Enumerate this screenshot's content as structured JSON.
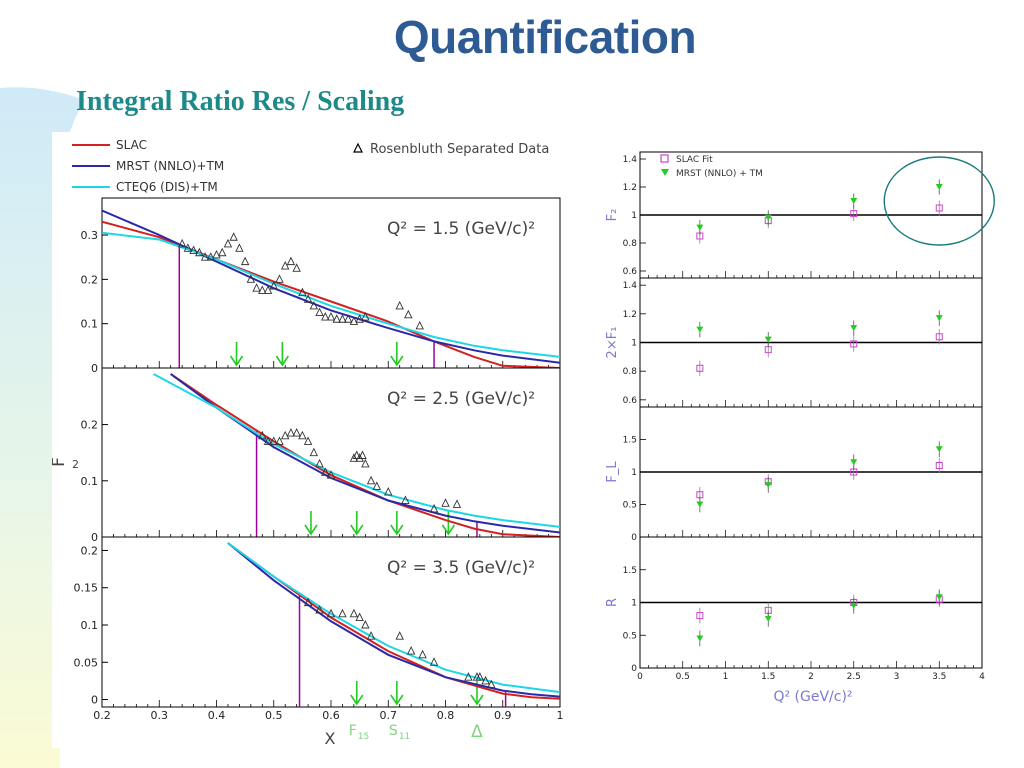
{
  "slide": {
    "title": "Quantification",
    "subtitle": "Integral Ratio Res / Scaling"
  },
  "colors": {
    "title": "#2f5b95",
    "subtitle": "#1d8a8a",
    "slac": "#d42020",
    "mrst": "#2a2aa8",
    "cteq": "#1ed6e6",
    "cut_line": "#a000a0",
    "arrow": "#22cc22",
    "fit_marker": "#cc44cc",
    "mrst_marker": "#22cc22",
    "ellipse": "#1a7a7a"
  },
  "chart_data": [
    {
      "type": "line",
      "ylabel": "F_2",
      "xlabel": "X",
      "xlim": [
        0.2,
        1.0
      ],
      "x_ticks": [
        "0.2",
        "0.3",
        "0.4",
        "0.5",
        "0.6",
        "0.7",
        "0.8",
        "0.9",
        "1"
      ],
      "legend": {
        "placement": "top",
        "entries": [
          "SLAC",
          "MRST (NNLO)+TM",
          "CTEQ6 (DIS)+TM"
        ],
        "marker_entry": "Rosenbluth Separated Data"
      },
      "resonance_markers": [
        {
          "label": "F15",
          "x": 0.645
        },
        {
          "label": "S11",
          "x": 0.715
        },
        {
          "label": "Δ",
          "x": 0.855
        }
      ],
      "panels": [
        {
          "label": "Q² = 1.5 (GeV/c)²",
          "ylim": [
            0,
            0.37
          ],
          "y_ticks": [
            "0",
            "0.1",
            "0.2",
            "0.3"
          ],
          "y_tick_values": [
            0,
            0.1,
            0.2,
            0.3
          ],
          "cut_x": [
            0.335,
            0.78
          ],
          "arrows_x": [
            0.435,
            0.515,
            0.715
          ],
          "series": [
            {
              "name": "SLAC",
              "x": [
                0.2,
                0.3,
                0.4,
                0.5,
                0.6,
                0.7,
                0.78,
                0.85,
                0.9,
                1.0
              ],
              "values": [
                0.33,
                0.295,
                0.245,
                0.195,
                0.15,
                0.105,
                0.06,
                0.025,
                0.005,
                0.0
              ]
            },
            {
              "name": "MRST (NNLO)+TM",
              "x": [
                0.2,
                0.3,
                0.4,
                0.5,
                0.6,
                0.7,
                0.78,
                0.85,
                0.9,
                1.0
              ],
              "values": [
                0.355,
                0.3,
                0.24,
                0.18,
                0.13,
                0.09,
                0.06,
                0.04,
                0.028,
                0.012
              ]
            },
            {
              "name": "CTEQ6 (DIS)+TM",
              "x": [
                0.2,
                0.3,
                0.4,
                0.5,
                0.6,
                0.7,
                0.78,
                0.85,
                0.9,
                1.0
              ],
              "values": [
                0.305,
                0.29,
                0.245,
                0.19,
                0.14,
                0.1,
                0.07,
                0.05,
                0.04,
                0.025
              ]
            }
          ],
          "data_points": {
            "x": [
              0.34,
              0.35,
              0.36,
              0.37,
              0.38,
              0.39,
              0.4,
              0.41,
              0.42,
              0.43,
              0.44,
              0.45,
              0.46,
              0.47,
              0.48,
              0.49,
              0.5,
              0.51,
              0.52,
              0.53,
              0.54,
              0.55,
              0.56,
              0.57,
              0.58,
              0.59,
              0.6,
              0.61,
              0.62,
              0.63,
              0.64,
              0.65,
              0.66,
              0.72,
              0.735,
              0.755
            ],
            "y": [
              0.28,
              0.27,
              0.265,
              0.26,
              0.25,
              0.25,
              0.255,
              0.26,
              0.28,
              0.295,
              0.27,
              0.24,
              0.2,
              0.18,
              0.175,
              0.175,
              0.185,
              0.2,
              0.23,
              0.24,
              0.225,
              0.17,
              0.155,
              0.14,
              0.125,
              0.115,
              0.115,
              0.11,
              0.11,
              0.11,
              0.105,
              0.11,
              0.115,
              0.14,
              0.12,
              0.095
            ]
          }
        },
        {
          "label": "Q² = 2.5 (GeV/c)²",
          "ylim": [
            0,
            0.29
          ],
          "y_ticks": [
            "0",
            "0.1",
            "0.2"
          ],
          "y_tick_values": [
            0,
            0.1,
            0.2
          ],
          "cut_x": [
            0.47,
            0.855
          ],
          "arrows_x": [
            0.565,
            0.645,
            0.715,
            0.805
          ],
          "series": [
            {
              "name": "SLAC",
              "x": [
                0.32,
                0.4,
                0.5,
                0.6,
                0.7,
                0.8,
                0.85,
                0.9,
                1.0
              ],
              "values": [
                0.29,
                0.235,
                0.17,
                0.11,
                0.065,
                0.03,
                0.015,
                0.005,
                0.0
              ]
            },
            {
              "name": "MRST (NNLO)+TM",
              "x": [
                0.32,
                0.4,
                0.5,
                0.6,
                0.7,
                0.8,
                0.85,
                0.9,
                1.0
              ],
              "values": [
                0.29,
                0.23,
                0.16,
                0.105,
                0.065,
                0.038,
                0.028,
                0.02,
                0.008
              ]
            },
            {
              "name": "CTEQ6 (DIS)+TM",
              "x": [
                0.29,
                0.4,
                0.5,
                0.6,
                0.7,
                0.8,
                0.85,
                0.9,
                1.0
              ],
              "values": [
                0.29,
                0.23,
                0.165,
                0.115,
                0.075,
                0.048,
                0.038,
                0.03,
                0.018
              ]
            }
          ],
          "data_points": {
            "x": [
              0.48,
              0.49,
              0.5,
              0.51,
              0.52,
              0.53,
              0.54,
              0.55,
              0.56,
              0.57,
              0.58,
              0.59,
              0.6,
              0.64,
              0.645,
              0.65,
              0.655,
              0.66,
              0.67,
              0.68,
              0.7,
              0.73,
              0.78,
              0.8,
              0.82
            ],
            "y": [
              0.18,
              0.17,
              0.17,
              0.17,
              0.18,
              0.185,
              0.185,
              0.18,
              0.17,
              0.15,
              0.13,
              0.115,
              0.11,
              0.14,
              0.145,
              0.14,
              0.145,
              0.13,
              0.1,
              0.09,
              0.08,
              0.065,
              0.05,
              0.06,
              0.058
            ]
          }
        },
        {
          "label": "Q² = 3.5 (GeV/c)²",
          "ylim": [
            -0.01,
            0.21
          ],
          "y_ticks": [
            "0",
            "0.05",
            "0.1",
            "0.15",
            "0.2"
          ],
          "y_tick_values": [
            0,
            0.05,
            0.1,
            0.15,
            0.2
          ],
          "cut_x": [
            0.545,
            0.905
          ],
          "arrows_x": [
            0.645,
            0.715,
            0.855
          ],
          "series": [
            {
              "name": "SLAC",
              "x": [
                0.42,
                0.5,
                0.6,
                0.7,
                0.8,
                0.9,
                0.95,
                1.0
              ],
              "values": [
                0.21,
                0.165,
                0.11,
                0.065,
                0.03,
                0.008,
                0.003,
                0.001
              ]
            },
            {
              "name": "MRST (NNLO)+TM",
              "x": [
                0.42,
                0.5,
                0.6,
                0.7,
                0.8,
                0.9,
                0.95,
                1.0
              ],
              "values": [
                0.21,
                0.16,
                0.105,
                0.06,
                0.03,
                0.012,
                0.007,
                0.004
              ]
            },
            {
              "name": "CTEQ6 (DIS)+TM",
              "x": [
                0.42,
                0.5,
                0.6,
                0.7,
                0.8,
                0.9,
                0.95,
                1.0
              ],
              "values": [
                0.21,
                0.165,
                0.115,
                0.072,
                0.04,
                0.02,
                0.015,
                0.01
              ]
            }
          ],
          "data_points": {
            "x": [
              0.56,
              0.58,
              0.6,
              0.62,
              0.64,
              0.65,
              0.66,
              0.67,
              0.72,
              0.74,
              0.76,
              0.78,
              0.84,
              0.855,
              0.86,
              0.87,
              0.88
            ],
            "y": [
              0.13,
              0.12,
              0.115,
              0.115,
              0.115,
              0.11,
              0.1,
              0.085,
              0.085,
              0.065,
              0.06,
              0.05,
              0.03,
              0.03,
              0.03,
              0.025,
              0.02
            ]
          }
        }
      ]
    },
    {
      "type": "scatter",
      "xlabel": "Q² (GeV/c)²",
      "xlim": [
        0,
        4
      ],
      "x_ticks": [
        "0",
        "0.5",
        "1",
        "1.5",
        "2",
        "2.5",
        "3",
        "3.5",
        "4"
      ],
      "legend": {
        "placement": "top-left",
        "entries": [
          "SLAC Fit",
          "MRST (NNLO) + TM"
        ]
      },
      "x": [
        0.7,
        1.5,
        2.5,
        3.5
      ],
      "panels": [
        {
          "ylabel": "F₂",
          "ylim": [
            0.55,
            1.45
          ],
          "y_ticks": [
            "0.6",
            "0.8",
            "1",
            "1.2",
            "1.4"
          ],
          "y_tick_values": [
            0.6,
            0.8,
            1.0,
            1.2,
            1.4
          ],
          "series": [
            {
              "name": "SLAC Fit",
              "values": [
                0.85,
                0.96,
                1.01,
                1.05
              ]
            },
            {
              "name": "MRST (NNLO) + TM",
              "values": [
                0.91,
                0.98,
                1.1,
                1.2
              ]
            }
          ],
          "highlight": "ellipse around Q² = 3.5"
        },
        {
          "ylabel": "2×F₁",
          "ylim": [
            0.55,
            1.45
          ],
          "y_ticks": [
            "0.6",
            "0.8",
            "1",
            "1.2",
            "1.4"
          ],
          "y_tick_values": [
            0.6,
            0.8,
            1.0,
            1.2,
            1.4
          ],
          "series": [
            {
              "name": "SLAC Fit",
              "values": [
                0.82,
                0.95,
                0.99,
                1.04
              ]
            },
            {
              "name": "MRST (NNLO) + TM",
              "values": [
                1.09,
                1.02,
                1.1,
                1.17
              ]
            }
          ]
        },
        {
          "ylabel": "F_L",
          "ylim": [
            0,
            2.0
          ],
          "y_ticks": [
            "0",
            "0.5",
            "1",
            "1.5"
          ],
          "y_tick_values": [
            0,
            0.5,
            1.0,
            1.5
          ],
          "series": [
            {
              "name": "SLAC Fit",
              "values": [
                0.65,
                0.85,
                1.0,
                1.1
              ]
            },
            {
              "name": "MRST (NNLO) + TM",
              "values": [
                0.5,
                0.8,
                1.15,
                1.35
              ]
            }
          ]
        },
        {
          "ylabel": "R",
          "ylim": [
            0,
            2.0
          ],
          "y_ticks": [
            "0",
            "0.5",
            "1",
            "1.5"
          ],
          "y_tick_values": [
            0,
            0.5,
            1.0,
            1.5
          ],
          "series": [
            {
              "name": "SLAC Fit",
              "values": [
                0.8,
                0.88,
                1.0,
                1.05
              ]
            },
            {
              "name": "MRST (NNLO) + TM",
              "values": [
                0.45,
                0.75,
                0.95,
                1.08
              ]
            }
          ]
        }
      ]
    }
  ]
}
